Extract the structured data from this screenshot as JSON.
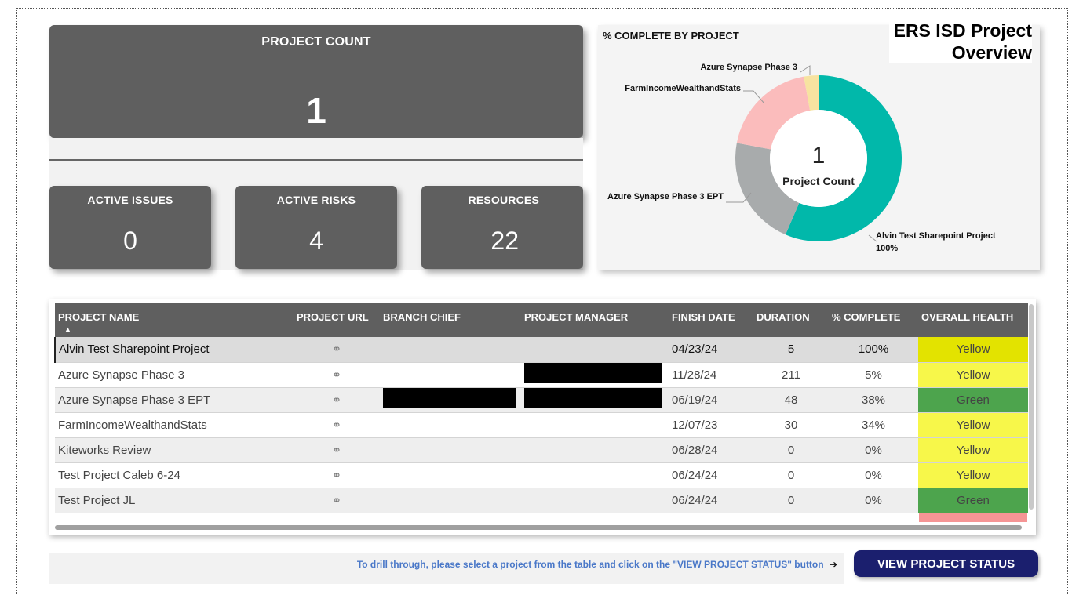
{
  "report_title": "ERS ISD Project Overview",
  "report_title_lines": [
    "ERS ISD Project",
    "Overview"
  ],
  "project_count": {
    "label": "PROJECT COUNT",
    "value": "1"
  },
  "kpis": [
    {
      "label": "ACTIVE ISSUES",
      "value": "0"
    },
    {
      "label": "ACTIVE RISKS",
      "value": "4"
    },
    {
      "label": "RESOURCES",
      "value": "22"
    }
  ],
  "donut": {
    "title": "% COMPLETE BY PROJECT",
    "center_value": "1",
    "center_label": "Project Count",
    "labels": {
      "azure_synapse_phase_3": "Azure Synapse Phase 3",
      "farm_income": "FarmIncomeWealthandStats",
      "azure_synapse_ept": "Azure Synapse Phase 3 EPT",
      "alvin_test": "Alvin Test Sharepoint Project",
      "alvin_test_value": "100%"
    }
  },
  "chart_data": {
    "type": "pie",
    "title": "% COMPLETE BY PROJECT",
    "categories": [
      "Alvin Test Sharepoint Project",
      "Azure Synapse Phase 3 EPT",
      "FarmIncomeWealthandStats",
      "Azure Synapse Phase 3"
    ],
    "values": [
      100,
      38,
      34,
      5
    ],
    "colors": [
      "#01b8aa",
      "#a8abac",
      "#fbbcbc",
      "#f7e3a0"
    ]
  },
  "table": {
    "headers": [
      "PROJECT NAME",
      "PROJECT URL",
      "BRANCH CHIEF",
      "PROJECT MANAGER",
      "FINISH DATE",
      "DURATION",
      "% COMPLETE",
      "OVERALL HEALTH"
    ],
    "rows": [
      {
        "name": "Alvin Test Sharepoint Project",
        "finish": "04/23/24",
        "duration": "5",
        "complete": "100%",
        "health": "Yellow"
      },
      {
        "name": "Azure Synapse Phase 3",
        "finish": "11/28/24",
        "duration": "211",
        "complete": "5%",
        "health": "Yellow"
      },
      {
        "name": "Azure Synapse Phase 3 EPT",
        "finish": "06/19/24",
        "duration": "48",
        "complete": "38%",
        "health": "Green"
      },
      {
        "name": "FarmIncomeWealthandStats",
        "finish": "12/07/23",
        "duration": "30",
        "complete": "34%",
        "health": "Yellow"
      },
      {
        "name": "Kiteworks Review",
        "finish": "06/28/24",
        "duration": "0",
        "complete": "0%",
        "health": "Yellow"
      },
      {
        "name": "Test Project Caleb 6-24",
        "finish": "06/24/24",
        "duration": "0",
        "complete": "0%",
        "health": "Yellow"
      },
      {
        "name": "Test Project JL",
        "finish": "06/24/24",
        "duration": "0",
        "complete": "0%",
        "health": "Green"
      }
    ]
  },
  "footer": {
    "note": "To drill through, please select a project from the table and click on the \"VIEW PROJECT STATUS\" button",
    "arrow": "➔",
    "button": "VIEW PROJECT STATUS"
  },
  "colors": {
    "card": "#5f5f5f",
    "button": "#1b1f6e",
    "note": "#4a78c8"
  },
  "icons": {
    "url": "link-icon",
    "sort": "sort-ascending-icon"
  }
}
